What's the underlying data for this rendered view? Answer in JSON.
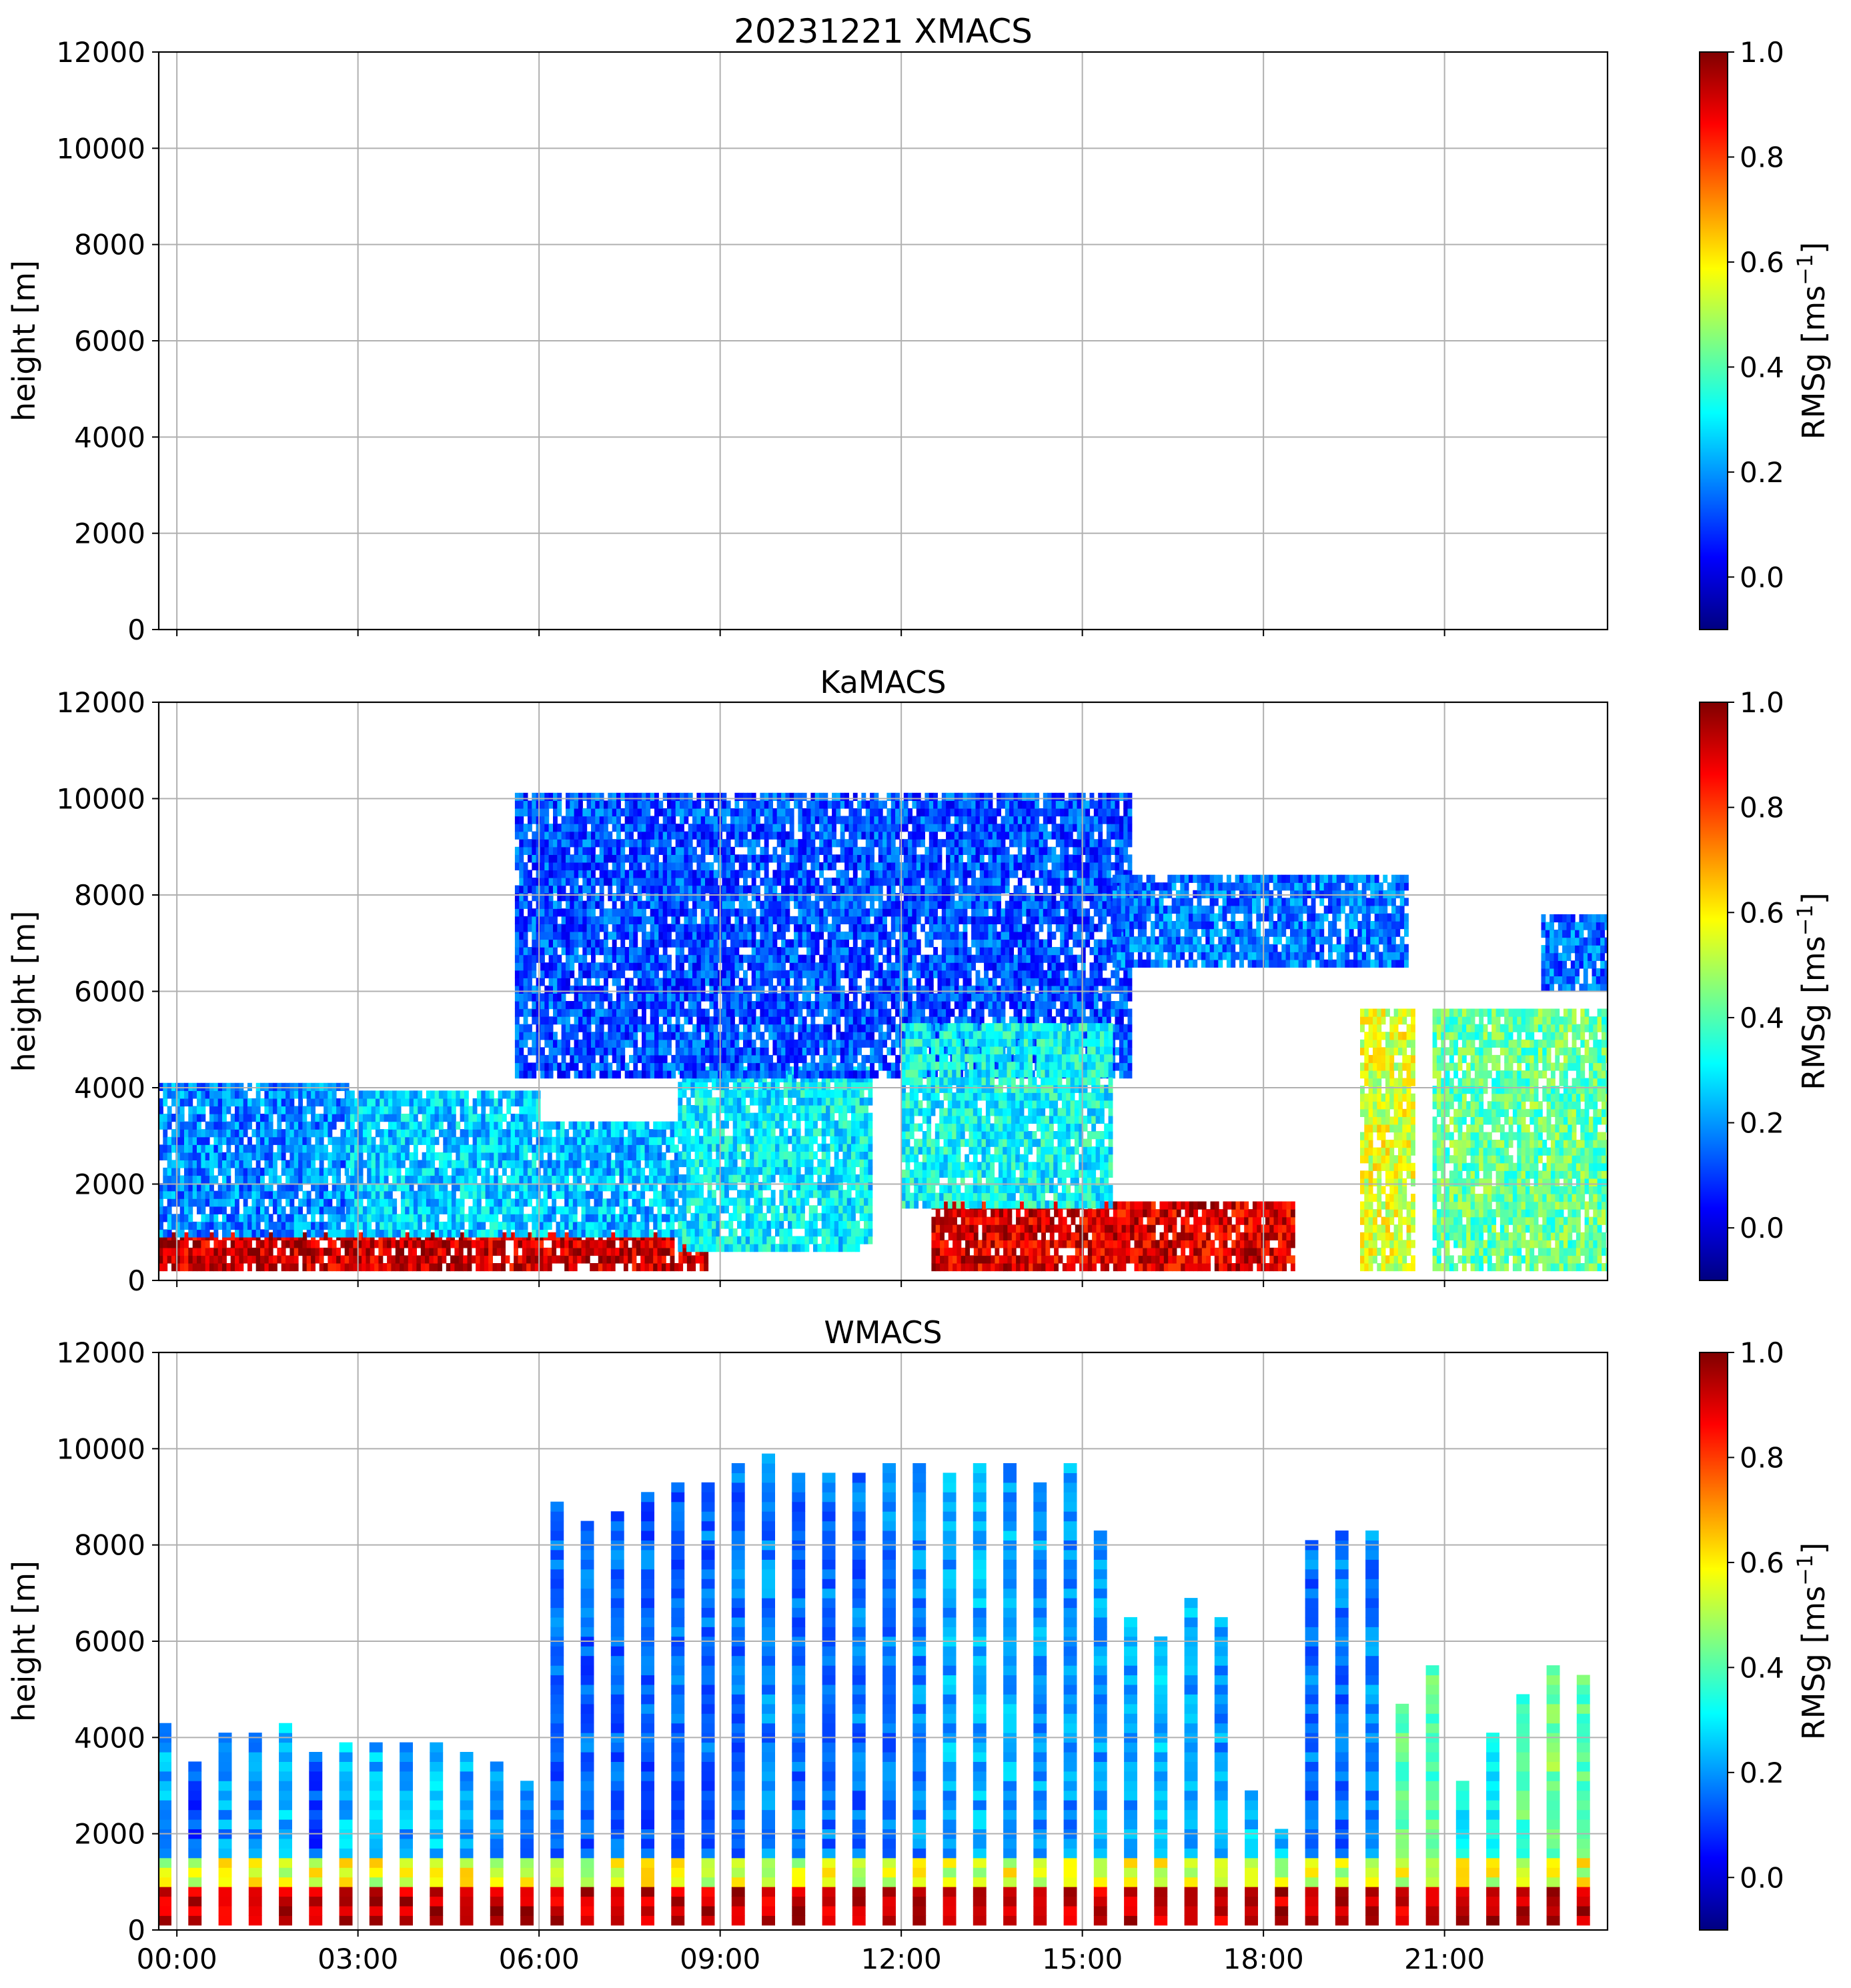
{
  "figure": {
    "colors": {
      "grid": "#b0b0b0",
      "jet_stops": [
        "#000080",
        "#0000ff",
        "#0080ff",
        "#00ffff",
        "#80ff80",
        "#ffff00",
        "#ff8000",
        "#ff0000",
        "#800000"
      ]
    }
  },
  "chart_data": [
    {
      "type": "heatmap",
      "title": "20231221 XMACS",
      "xlabel": "",
      "ylabel": "height [m]",
      "ylim": [
        0,
        12000
      ],
      "xlim_hours": [
        -0.3,
        23.7
      ],
      "x_ticks_hours": [
        0,
        3,
        6,
        9,
        12,
        15,
        18,
        21
      ],
      "x_tick_labels": [
        "00:00",
        "03:00",
        "06:00",
        "09:00",
        "12:00",
        "15:00",
        "18:00",
        "21:00"
      ],
      "y_ticks": [
        0,
        2000,
        4000,
        6000,
        8000,
        10000,
        12000
      ],
      "y_tick_labels": [
        "0",
        "2000",
        "4000",
        "6000",
        "8000",
        "10000",
        "12000"
      ],
      "grid": true,
      "show_x_tick_labels": false,
      "colorbar": {
        "label": "RMSg [ms",
        "label_superscript": "−1",
        "label_close": "]",
        "range": [
          -0.1,
          1.0
        ],
        "ticks": [
          0.0,
          0.2,
          0.4,
          0.6,
          0.8,
          1.0
        ],
        "tick_labels": [
          "0.0",
          "0.2",
          "0.4",
          "0.6",
          "0.8",
          "1.0"
        ],
        "colormap": "jet"
      },
      "mode": "empty",
      "columns": []
    },
    {
      "type": "heatmap",
      "title": "KaMACS",
      "xlabel": "",
      "ylabel": "height [m]",
      "ylim": [
        0,
        12000
      ],
      "xlim_hours": [
        -0.3,
        23.7
      ],
      "x_ticks_hours": [
        0,
        3,
        6,
        9,
        12,
        15,
        18,
        21
      ],
      "x_tick_labels": [
        "00:00",
        "03:00",
        "06:00",
        "09:00",
        "12:00",
        "15:00",
        "18:00",
        "21:00"
      ],
      "y_ticks": [
        0,
        2000,
        4000,
        6000,
        8000,
        10000,
        12000
      ],
      "y_tick_labels": [
        "0",
        "2000",
        "4000",
        "6000",
        "8000",
        "10000",
        "12000"
      ],
      "grid": true,
      "show_x_tick_labels": false,
      "colorbar": {
        "label": "RMSg [ms",
        "label_superscript": "−1",
        "label_close": "]",
        "range": [
          -0.1,
          1.0
        ],
        "ticks": [
          0.0,
          0.2,
          0.4,
          0.6,
          0.8,
          1.0
        ],
        "tick_labels": [
          "0.0",
          "0.2",
          "0.4",
          "0.6",
          "0.8",
          "1.0"
        ],
        "colormap": "jet"
      },
      "mode": "continuous",
      "layers": [
        {
          "t": [
            -0.3,
            8.8
          ],
          "h": [
            200,
            900
          ],
          "v": 0.92
        },
        {
          "t": [
            -0.3,
            2.8
          ],
          "h": [
            900,
            4100
          ],
          "v": 0.18
        },
        {
          "t": [
            2.8,
            6.0
          ],
          "h": [
            900,
            3800
          ],
          "v": 0.26
        },
        {
          "t": [
            6.0,
            8.3
          ],
          "h": [
            900,
            3200
          ],
          "v": 0.24
        },
        {
          "t": [
            8.3,
            11.5
          ],
          "h": [
            600,
            4300
          ],
          "v": 0.3
        },
        {
          "t": [
            5.6,
            15.8
          ],
          "h": [
            4200,
            10000
          ],
          "v": 0.12
        },
        {
          "t": [
            12.5,
            18.5
          ],
          "h": [
            200,
            1500
          ],
          "v": 0.9
        },
        {
          "t": [
            12.0,
            15.5
          ],
          "h": [
            1500,
            5200
          ],
          "v": 0.32
        },
        {
          "t": [
            15.5,
            20.4
          ],
          "h": [
            6500,
            8400
          ],
          "v": 0.16
        },
        {
          "t": [
            19.6,
            20.5
          ],
          "h": [
            200,
            5600
          ],
          "v": 0.55
        },
        {
          "t": [
            20.8,
            23.7
          ],
          "h": [
            200,
            5500
          ],
          "v": 0.42
        },
        {
          "t": [
            22.6,
            23.7
          ],
          "h": [
            6000,
            7500
          ],
          "v": 0.15
        }
      ]
    },
    {
      "type": "heatmap",
      "title": "WMACS",
      "xlabel": "",
      "ylabel": "height [m]",
      "ylim": [
        0,
        12000
      ],
      "xlim_hours": [
        -0.3,
        23.7
      ],
      "x_ticks_hours": [
        0,
        3,
        6,
        9,
        12,
        15,
        18,
        21
      ],
      "x_tick_labels": [
        "00:00",
        "03:00",
        "06:00",
        "09:00",
        "12:00",
        "15:00",
        "18:00",
        "21:00"
      ],
      "y_ticks": [
        0,
        2000,
        4000,
        6000,
        8000,
        10000,
        12000
      ],
      "y_tick_labels": [
        "0",
        "2000",
        "4000",
        "6000",
        "8000",
        "10000",
        "12000"
      ],
      "grid": true,
      "show_x_tick_labels": true,
      "colorbar": {
        "label": "RMSg [ms",
        "label_superscript": "−1",
        "label_close": "]",
        "range": [
          -0.1,
          1.0
        ],
        "ticks": [
          0.0,
          0.2,
          0.4,
          0.6,
          0.8,
          1.0
        ],
        "tick_labels": [
          "0.0",
          "0.2",
          "0.4",
          "0.6",
          "0.8",
          "1.0"
        ],
        "colormap": "jet"
      },
      "mode": "columns",
      "columns": [
        {
          "t": -0.2,
          "top": 4200,
          "mid": 0.22
        },
        {
          "t": 0.3,
          "top": 3400,
          "mid": 0.12
        },
        {
          "t": 0.8,
          "top": 4000,
          "mid": 0.2
        },
        {
          "t": 1.3,
          "top": 4100,
          "mid": 0.2
        },
        {
          "t": 1.8,
          "top": 4300,
          "mid": 0.24
        },
        {
          "t": 2.3,
          "top": 3700,
          "mid": 0.12
        },
        {
          "t": 2.8,
          "top": 3900,
          "mid": 0.24
        },
        {
          "t": 3.3,
          "top": 3900,
          "mid": 0.24
        },
        {
          "t": 3.8,
          "top": 3800,
          "mid": 0.22
        },
        {
          "t": 4.3,
          "top": 3800,
          "mid": 0.24
        },
        {
          "t": 4.8,
          "top": 3600,
          "mid": 0.22
        },
        {
          "t": 5.3,
          "top": 3400,
          "mid": 0.2
        },
        {
          "t": 5.8,
          "top": 3100,
          "mid": 0.18
        },
        {
          "t": 6.3,
          "top": 8800,
          "mid": 0.14
        },
        {
          "t": 6.8,
          "top": 8500,
          "mid": 0.14
        },
        {
          "t": 7.3,
          "top": 8600,
          "mid": 0.14
        },
        {
          "t": 7.8,
          "top": 9000,
          "mid": 0.14
        },
        {
          "t": 8.3,
          "top": 9300,
          "mid": 0.15
        },
        {
          "t": 8.8,
          "top": 9300,
          "mid": 0.15
        },
        {
          "t": 9.3,
          "top": 9600,
          "mid": 0.16
        },
        {
          "t": 9.8,
          "top": 9900,
          "mid": 0.18
        },
        {
          "t": 10.3,
          "top": 9500,
          "mid": 0.16
        },
        {
          "t": 10.8,
          "top": 9500,
          "mid": 0.16
        },
        {
          "t": 11.3,
          "top": 9500,
          "mid": 0.16
        },
        {
          "t": 11.8,
          "top": 9700,
          "mid": 0.17
        },
        {
          "t": 12.3,
          "top": 9600,
          "mid": 0.18
        },
        {
          "t": 12.8,
          "top": 9400,
          "mid": 0.22
        },
        {
          "t": 13.3,
          "top": 9700,
          "mid": 0.22
        },
        {
          "t": 13.8,
          "top": 9600,
          "mid": 0.22
        },
        {
          "t": 14.3,
          "top": 9300,
          "mid": 0.2
        },
        {
          "t": 14.8,
          "top": 9700,
          "mid": 0.2
        },
        {
          "t": 15.3,
          "top": 8300,
          "mid": 0.2
        },
        {
          "t": 15.8,
          "top": 6500,
          "mid": 0.22
        },
        {
          "t": 16.3,
          "top": 6000,
          "mid": 0.24
        },
        {
          "t": 16.8,
          "top": 6800,
          "mid": 0.22
        },
        {
          "t": 17.3,
          "top": 6500,
          "mid": 0.2
        },
        {
          "t": 17.8,
          "top": 2800,
          "mid": 0.24
        },
        {
          "t": 18.3,
          "top": 2000,
          "mid": 0.24
        },
        {
          "t": 18.8,
          "top": 8100,
          "mid": 0.16
        },
        {
          "t": 19.3,
          "top": 8300,
          "mid": 0.16
        },
        {
          "t": 19.8,
          "top": 8300,
          "mid": 0.18
        },
        {
          "t": 20.3,
          "top": 4600,
          "mid": 0.4
        },
        {
          "t": 20.8,
          "top": 5500,
          "mid": 0.4
        },
        {
          "t": 21.3,
          "top": 3000,
          "mid": 0.3
        },
        {
          "t": 21.8,
          "top": 4000,
          "mid": 0.3
        },
        {
          "t": 22.3,
          "top": 4800,
          "mid": 0.4
        },
        {
          "t": 22.8,
          "top": 5400,
          "mid": 0.45
        },
        {
          "t": 23.3,
          "top": 5200,
          "mid": 0.42
        }
      ]
    }
  ]
}
